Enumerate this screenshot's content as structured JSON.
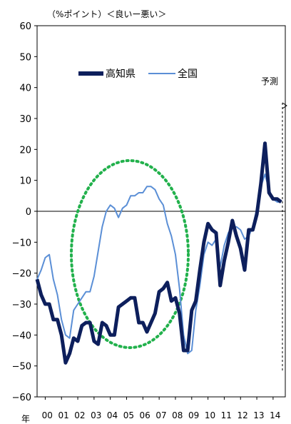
{
  "chart_data": {
    "type": "line",
    "unit_label": "（%ポイント）＜良いー悪い＞",
    "x_axis_label": "年",
    "forecast_label": "予測",
    "ylim": [
      -60,
      60
    ],
    "y_ticks": [
      60,
      50,
      40,
      30,
      20,
      10,
      0,
      -10,
      -20,
      -30,
      -40,
      -50,
      -60
    ],
    "x_ticks": [
      "00",
      "01",
      "02",
      "03",
      "04",
      "05",
      "06",
      "07",
      "08",
      "09",
      "10",
      "11",
      "12",
      "13",
      "14"
    ],
    "x_range": [
      1999.5,
      2014.75
    ],
    "legend_position": "top",
    "series": [
      {
        "name": "高知県",
        "color": "#0d1f5c",
        "points": [
          [
            1999.5,
            -22
          ],
          [
            1999.75,
            -27
          ],
          [
            2000.0,
            -30
          ],
          [
            2000.25,
            -30
          ],
          [
            2000.5,
            -35
          ],
          [
            2000.75,
            -35
          ],
          [
            2001.0,
            -40
          ],
          [
            2001.25,
            -49
          ],
          [
            2001.5,
            -46
          ],
          [
            2001.75,
            -41
          ],
          [
            2002.0,
            -42
          ],
          [
            2002.25,
            -37
          ],
          [
            2002.5,
            -36
          ],
          [
            2002.75,
            -36
          ],
          [
            2003.0,
            -42
          ],
          [
            2003.25,
            -43
          ],
          [
            2003.5,
            -36
          ],
          [
            2003.75,
            -37
          ],
          [
            2004.0,
            -40
          ],
          [
            2004.25,
            -40
          ],
          [
            2004.5,
            -31
          ],
          [
            2004.75,
            -30
          ],
          [
            2005.0,
            -29
          ],
          [
            2005.25,
            -28
          ],
          [
            2005.5,
            -28
          ],
          [
            2005.75,
            -36
          ],
          [
            2006.0,
            -36
          ],
          [
            2006.25,
            -39
          ],
          [
            2006.5,
            -36
          ],
          [
            2006.75,
            -33
          ],
          [
            2007.0,
            -26
          ],
          [
            2007.25,
            -25
          ],
          [
            2007.5,
            -23
          ],
          [
            2007.75,
            -29
          ],
          [
            2008.0,
            -28
          ],
          [
            2008.25,
            -33
          ],
          [
            2008.5,
            -45
          ],
          [
            2008.75,
            -45
          ],
          [
            2009.0,
            -32
          ],
          [
            2009.25,
            -29
          ],
          [
            2009.5,
            -19
          ],
          [
            2009.75,
            -10
          ],
          [
            2010.0,
            -4
          ],
          [
            2010.25,
            -6
          ],
          [
            2010.5,
            -7
          ],
          [
            2010.75,
            -24
          ],
          [
            2011.0,
            -16
          ],
          [
            2011.25,
            -10
          ],
          [
            2011.5,
            -3
          ],
          [
            2011.75,
            -8
          ],
          [
            2012.0,
            -12
          ],
          [
            2012.25,
            -19
          ],
          [
            2012.5,
            -6
          ],
          [
            2012.75,
            -6
          ],
          [
            2013.0,
            -1
          ],
          [
            2013.25,
            9
          ],
          [
            2013.5,
            22
          ],
          [
            2013.75,
            6
          ],
          [
            2014.0,
            4
          ],
          [
            2014.25,
            4
          ],
          [
            2014.5,
            3
          ]
        ]
      },
      {
        "name": "全国",
        "color": "#5b8fd6",
        "points": [
          [
            1999.5,
            -22
          ],
          [
            1999.75,
            -19
          ],
          [
            2000.0,
            -15
          ],
          [
            2000.25,
            -14
          ],
          [
            2000.5,
            -22
          ],
          [
            2000.75,
            -27
          ],
          [
            2001.0,
            -35
          ],
          [
            2001.25,
            -40
          ],
          [
            2001.5,
            -41
          ],
          [
            2001.75,
            -32
          ],
          [
            2002.0,
            -30
          ],
          [
            2002.25,
            -28
          ],
          [
            2002.5,
            -26
          ],
          [
            2002.75,
            -26
          ],
          [
            2003.0,
            -21
          ],
          [
            2003.25,
            -13
          ],
          [
            2003.5,
            -5
          ],
          [
            2003.75,
            0
          ],
          [
            2004.0,
            2
          ],
          [
            2004.25,
            1
          ],
          [
            2004.5,
            -2
          ],
          [
            2004.75,
            1
          ],
          [
            2005.0,
            2
          ],
          [
            2005.25,
            5
          ],
          [
            2005.5,
            5
          ],
          [
            2005.75,
            6
          ],
          [
            2006.0,
            6
          ],
          [
            2006.25,
            8
          ],
          [
            2006.5,
            8
          ],
          [
            2006.75,
            7
          ],
          [
            2007.0,
            4
          ],
          [
            2007.25,
            2
          ],
          [
            2007.5,
            -4
          ],
          [
            2007.75,
            -8
          ],
          [
            2008.0,
            -14
          ],
          [
            2008.25,
            -25
          ],
          [
            2008.5,
            -40
          ],
          [
            2008.75,
            -46
          ],
          [
            2009.0,
            -45
          ],
          [
            2009.25,
            -32
          ],
          [
            2009.5,
            -24
          ],
          [
            2009.75,
            -14
          ],
          [
            2010.0,
            -10
          ],
          [
            2010.25,
            -11
          ],
          [
            2010.5,
            -9
          ],
          [
            2010.75,
            -18
          ],
          [
            2011.0,
            -11
          ],
          [
            2011.25,
            -7
          ],
          [
            2011.5,
            -5
          ],
          [
            2011.75,
            -5
          ],
          [
            2012.0,
            -6
          ],
          [
            2012.25,
            -9
          ],
          [
            2012.5,
            -8
          ],
          [
            2012.75,
            -5
          ],
          [
            2013.0,
            1
          ],
          [
            2013.25,
            8
          ],
          [
            2013.5,
            12
          ],
          [
            2013.75,
            7
          ],
          [
            2014.0,
            4
          ],
          [
            2014.25,
            3
          ],
          [
            2014.5,
            3
          ]
        ]
      }
    ],
    "colors": {
      "ellipse": "#22b14c",
      "grid_zero": "#000000"
    }
  }
}
